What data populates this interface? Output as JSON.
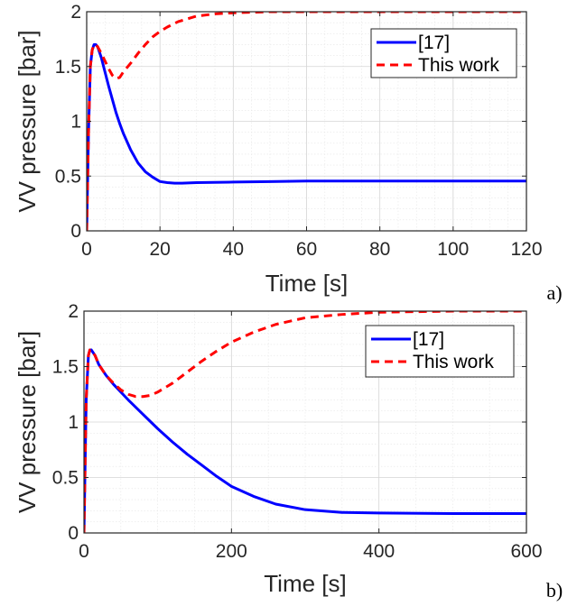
{
  "chart_data": [
    {
      "type": "line",
      "panel_label": "a)",
      "xlabel": "Time [s]",
      "ylabel": "VV pressure [bar]",
      "xlim": [
        0,
        120
      ],
      "ylim": [
        0,
        2
      ],
      "x_ticks": [
        "0",
        "20",
        "40",
        "60",
        "80",
        "100",
        "120"
      ],
      "y_ticks": [
        "0",
        "0.5",
        "1",
        "1.5",
        "2"
      ],
      "grid": "on (major and minor)",
      "legend_position": "top-right",
      "series": [
        {
          "name": "[17]",
          "color": "#0000ff",
          "style": "solid",
          "x": [
            0,
            0.5,
            1,
            1.5,
            2,
            2.5,
            3,
            4,
            5,
            6,
            7,
            8,
            9,
            10,
            12,
            14,
            16,
            18,
            20,
            22,
            24,
            26,
            30,
            40,
            50,
            60,
            80,
            100,
            120
          ],
          "y": [
            0,
            0.9,
            1.5,
            1.65,
            1.7,
            1.7,
            1.68,
            1.58,
            1.45,
            1.32,
            1.2,
            1.08,
            0.98,
            0.89,
            0.74,
            0.62,
            0.54,
            0.49,
            0.45,
            0.44,
            0.435,
            0.435,
            0.44,
            0.445,
            0.45,
            0.455,
            0.455,
            0.455,
            0.455
          ]
        },
        {
          "name": "This work",
          "color": "#ff0000",
          "style": "dashed",
          "x": [
            0,
            0.5,
            1,
            1.5,
            2,
            2.5,
            3,
            4,
            5,
            6,
            7,
            8,
            9,
            10,
            12,
            14,
            16,
            18,
            20,
            22,
            25,
            30,
            35,
            40,
            50,
            60,
            80,
            100,
            120
          ],
          "y": [
            0,
            0.9,
            1.5,
            1.65,
            1.7,
            1.7,
            1.68,
            1.62,
            1.55,
            1.48,
            1.42,
            1.39,
            1.4,
            1.45,
            1.53,
            1.62,
            1.7,
            1.77,
            1.82,
            1.86,
            1.91,
            1.96,
            1.98,
            1.99,
            2.0,
            2.0,
            2.0,
            2.0,
            2.0
          ]
        }
      ]
    },
    {
      "type": "line",
      "panel_label": "b)",
      "xlabel": "Time [s]",
      "ylabel": "VV pressure [bar]",
      "xlim": [
        0,
        600
      ],
      "ylim": [
        0,
        2
      ],
      "x_ticks": [
        "0",
        "200",
        "400",
        "600"
      ],
      "y_ticks": [
        "0",
        "0.5",
        "1",
        "1.5",
        "2"
      ],
      "grid": "on (major and minor)",
      "legend_position": "top-right",
      "series": [
        {
          "name": "[17]",
          "color": "#0000ff",
          "style": "solid",
          "x": [
            0,
            3,
            6,
            8,
            10,
            15,
            20,
            30,
            40,
            60,
            80,
            100,
            120,
            140,
            160,
            180,
            200,
            230,
            260,
            300,
            350,
            400,
            500,
            600
          ],
          "y": [
            0,
            1.2,
            1.6,
            1.65,
            1.65,
            1.6,
            1.52,
            1.42,
            1.34,
            1.2,
            1.07,
            0.94,
            0.82,
            0.71,
            0.61,
            0.51,
            0.42,
            0.33,
            0.26,
            0.21,
            0.185,
            0.18,
            0.175,
            0.175
          ]
        },
        {
          "name": "This work",
          "color": "#ff0000",
          "style": "dashed",
          "x": [
            0,
            3,
            6,
            8,
            10,
            15,
            20,
            30,
            40,
            50,
            60,
            70,
            80,
            90,
            100,
            120,
            140,
            160,
            180,
            200,
            230,
            260,
            300,
            350,
            400,
            500,
            600
          ],
          "y": [
            0,
            1.2,
            1.6,
            1.65,
            1.65,
            1.6,
            1.52,
            1.42,
            1.35,
            1.29,
            1.25,
            1.23,
            1.23,
            1.24,
            1.27,
            1.35,
            1.45,
            1.55,
            1.64,
            1.72,
            1.81,
            1.88,
            1.94,
            1.97,
            1.99,
            2.0,
            2.0
          ]
        }
      ]
    }
  ]
}
